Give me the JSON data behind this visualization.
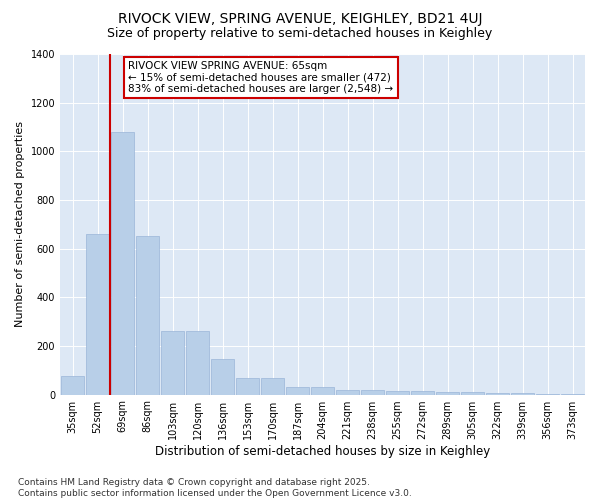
{
  "title": "RIVOCK VIEW, SPRING AVENUE, KEIGHLEY, BD21 4UJ",
  "subtitle": "Size of property relative to semi-detached houses in Keighley",
  "xlabel": "Distribution of semi-detached houses by size in Keighley",
  "ylabel": "Number of semi-detached properties",
  "categories": [
    "35sqm",
    "52sqm",
    "69sqm",
    "86sqm",
    "103sqm",
    "120sqm",
    "136sqm",
    "153sqm",
    "170sqm",
    "187sqm",
    "204sqm",
    "221sqm",
    "238sqm",
    "255sqm",
    "272sqm",
    "289sqm",
    "305sqm",
    "322sqm",
    "339sqm",
    "356sqm",
    "373sqm"
  ],
  "values": [
    75,
    660,
    1080,
    650,
    260,
    260,
    145,
    70,
    70,
    30,
    30,
    20,
    20,
    15,
    15,
    10,
    10,
    5,
    5,
    3,
    3
  ],
  "bar_color": "#b8cfe8",
  "bar_edgecolor": "#9ab5d8",
  "vline_color": "#cc0000",
  "vline_position": 1.5,
  "annotation_title": "RIVOCK VIEW SPRING AVENUE: 65sqm",
  "annotation_line1": "← 15% of semi-detached houses are smaller (472)",
  "annotation_line2": "83% of semi-detached houses are larger (2,548) →",
  "annotation_box_color": "#ffffff",
  "annotation_box_edgecolor": "#cc0000",
  "footer_line1": "Contains HM Land Registry data © Crown copyright and database right 2025.",
  "footer_line2": "Contains public sector information licensed under the Open Government Licence v3.0.",
  "plot_bg_color": "#dde8f5",
  "fig_bg_color": "#ffffff",
  "ylim": [
    0,
    1400
  ],
  "title_fontsize": 10,
  "subtitle_fontsize": 9,
  "xlabel_fontsize": 8.5,
  "ylabel_fontsize": 8,
  "tick_fontsize": 7,
  "ann_fontsize": 7.5,
  "footer_fontsize": 6.5
}
